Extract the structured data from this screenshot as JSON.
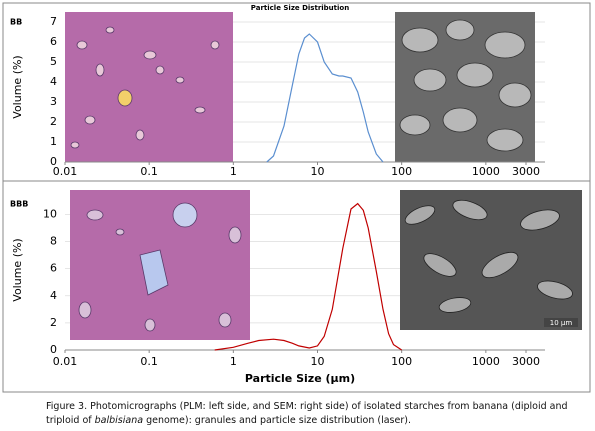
{
  "chart_data": [
    {
      "type": "line",
      "label": "BB",
      "title": "Particle Size Distribution",
      "y_label": "Volume (%)",
      "x_scale": "log",
      "xlim": [
        0.01,
        3000
      ],
      "xticks": [
        0.01,
        0.1,
        1,
        10,
        100,
        1000,
        3000
      ],
      "ylim": [
        0,
        7.5
      ],
      "yticks": [
        0,
        1,
        2,
        3,
        4,
        5,
        6,
        7
      ],
      "grid": true,
      "series": [
        {
          "color": "#5b8fd0",
          "x": [
            2.5,
            3,
            4,
            5,
            6,
            7,
            8,
            10,
            12,
            15,
            18,
            20,
            25,
            30,
            35,
            40,
            50,
            60
          ],
          "values": [
            0,
            0.3,
            1.8,
            3.8,
            5.4,
            6.2,
            6.4,
            6.0,
            5.0,
            4.4,
            4.3,
            4.3,
            4.2,
            3.5,
            2.5,
            1.5,
            0.4,
            0
          ]
        }
      ]
    },
    {
      "type": "line",
      "label": "BBB",
      "y_label": "Volume (%)",
      "x_label": "Particle Size (µm)",
      "x_scale": "log",
      "xlim": [
        0.01,
        3000
      ],
      "xticks": [
        0.01,
        0.1,
        1,
        10,
        100,
        1000,
        3000
      ],
      "ylim": [
        0,
        11.8
      ],
      "yticks": [
        0,
        2,
        4,
        6,
        8,
        10
      ],
      "grid": true,
      "series": [
        {
          "color": "#c00000",
          "x": [
            0.6,
            1,
            1.5,
            2,
            3,
            4,
            5,
            6,
            8,
            10,
            12,
            15,
            20,
            25,
            30,
            35,
            40,
            50,
            60,
            70,
            80,
            100
          ],
          "values": [
            0,
            0.2,
            0.5,
            0.7,
            0.8,
            0.7,
            0.5,
            0.3,
            0.15,
            0.3,
            1.0,
            3.0,
            7.5,
            10.4,
            10.8,
            10.3,
            9.0,
            5.8,
            3.0,
            1.2,
            0.4,
            0
          ]
        }
      ]
    }
  ],
  "sem_scale_bar": "10 µm",
  "caption": [
    "Figure 3. Photomicrographs (PLM: left side, and SEM: right side) of isolated starches from banana (diploid and triploid of ",
    "balbisiana",
    " genome): granules and particle size distribution (laser)."
  ]
}
